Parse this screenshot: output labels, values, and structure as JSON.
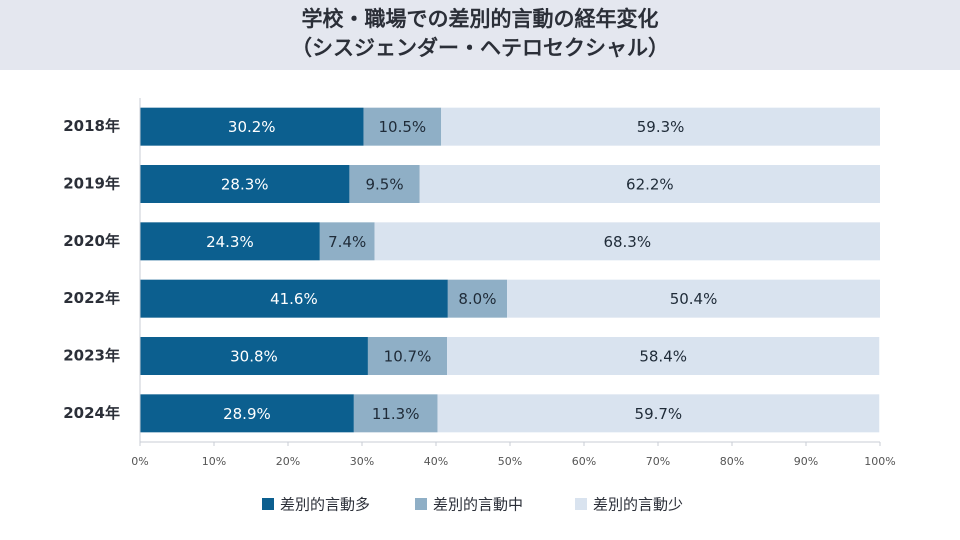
{
  "chart_data": {
    "type": "stacked-bar-horizontal",
    "title": "学校・職場での差別的言動の経年変化",
    "subtitle": "（シスジェンダー・ヘテロセクシャル）",
    "categories": [
      "2018年",
      "2019年",
      "2020年",
      "2022年",
      "2023年",
      "2024年"
    ],
    "series": [
      {
        "name": "差別的言動多",
        "color": "#0c5f8f",
        "text_color": "#ffffff",
        "values": [
          30.2,
          28.3,
          24.3,
          41.6,
          30.8,
          28.9
        ],
        "value_labels": [
          "30.2%",
          "28.3%",
          "24.3%",
          "41.6%",
          "30.8%",
          "28.9%"
        ]
      },
      {
        "name": "差別的言動中",
        "color": "#8fafc6",
        "text_color": "#1f2b38",
        "values": [
          10.5,
          9.5,
          7.4,
          8.0,
          10.7,
          11.3
        ],
        "value_labels": [
          "10.5%",
          "9.5%",
          "7.4%",
          "8.0%",
          "10.7%",
          "11.3%"
        ]
      },
      {
        "name": "差別的言動少",
        "color": "#d9e3ef",
        "text_color": "#1f2b38",
        "values": [
          59.3,
          62.2,
          68.3,
          50.4,
          58.4,
          59.7
        ],
        "value_labels": [
          "59.3%",
          "62.2%",
          "68.3%",
          "50.4%",
          "58.4%",
          "59.7%"
        ]
      }
    ],
    "xlim": [
      0,
      100
    ],
    "xticks": [
      {
        "value": 0,
        "label": "0%"
      },
      {
        "value": 10,
        "label": "10%"
      },
      {
        "value": 20,
        "label": "20%"
      },
      {
        "value": 30,
        "label": "30%"
      },
      {
        "value": 40,
        "label": "40%"
      },
      {
        "value": 50,
        "label": "50%"
      },
      {
        "value": 60,
        "label": "60%"
      },
      {
        "value": 70,
        "label": "70%"
      },
      {
        "value": 80,
        "label": "80%"
      },
      {
        "value": 90,
        "label": "90%"
      },
      {
        "value": 100,
        "label": "100%"
      }
    ],
    "grid": false,
    "legend": "bottom"
  }
}
